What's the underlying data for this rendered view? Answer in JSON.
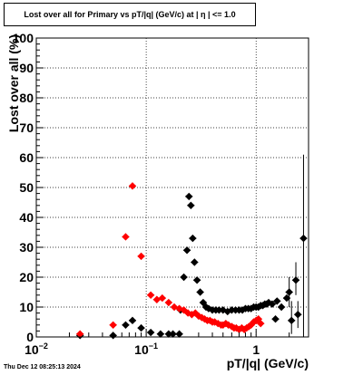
{
  "title": "Lost over all for Primary vs pT/|q| (GeV/c) at |  η  | <= 1.0",
  "footer": "Thu Dec 12 08:25:13 2024",
  "chart_data": {
    "type": "scatter",
    "xlabel": "pT/|q| (GeV/c)",
    "ylabel": "Lost over all (%)",
    "xscale": "log",
    "xlim": [
      0.01,
      3.0
    ],
    "ylim": [
      0,
      100
    ],
    "grid": true,
    "legend": "none",
    "y_ticks": [
      0,
      10,
      20,
      30,
      40,
      50,
      60,
      70,
      80,
      90,
      100
    ],
    "x_ticks": [
      {
        "value": 0.01,
        "base": "10",
        "exp": "−2"
      },
      {
        "value": 0.1,
        "base": "10",
        "exp": "−1"
      },
      {
        "value": 1,
        "base": "1",
        "exp": ""
      }
    ],
    "series": [
      {
        "color": "#000000",
        "points": [
          [
            0.025,
            0.5
          ],
          [
            0.05,
            0.5
          ],
          [
            0.065,
            4.0
          ],
          [
            0.075,
            5.5
          ],
          [
            0.09,
            3.0
          ],
          [
            0.11,
            1.5
          ],
          [
            0.135,
            1.0
          ],
          [
            0.16,
            1.0
          ],
          [
            0.175,
            1.0
          ],
          [
            0.2,
            1.0
          ],
          [
            0.205,
            9.0
          ],
          [
            0.22,
            20.0
          ],
          [
            0.235,
            29.0
          ],
          [
            0.245,
            47.0
          ],
          [
            0.255,
            44.0
          ],
          [
            0.265,
            33.0
          ],
          [
            0.275,
            25.0
          ],
          [
            0.29,
            19.0
          ],
          [
            0.31,
            15.0
          ],
          [
            0.33,
            11.5
          ],
          [
            0.35,
            10.0
          ],
          [
            0.37,
            9.5
          ],
          [
            0.4,
            9.0
          ],
          [
            0.43,
            9.0
          ],
          [
            0.46,
            9.0
          ],
          [
            0.5,
            9.0
          ],
          [
            0.55,
            8.5
          ],
          [
            0.6,
            9.0
          ],
          [
            0.65,
            9.0
          ],
          [
            0.7,
            9.0
          ],
          [
            0.75,
            9.0
          ],
          [
            0.8,
            9.5
          ],
          [
            0.85,
            9.5
          ],
          [
            0.9,
            9.5
          ],
          [
            0.95,
            10.0
          ],
          [
            1.0,
            10.0
          ],
          [
            1.05,
            10.0
          ],
          [
            1.1,
            10.5
          ],
          [
            1.15,
            10.5
          ],
          [
            1.2,
            11.0
          ],
          [
            1.25,
            11.0
          ],
          [
            1.3,
            11.5
          ],
          [
            1.4,
            11.0
          ],
          [
            1.5,
            6.0
          ],
          [
            1.55,
            12.0
          ],
          [
            1.7,
            10.0
          ],
          [
            1.9,
            13.0
          ],
          [
            2.0,
            15.0
          ],
          [
            2.1,
            5.5
          ],
          [
            2.3,
            19.0
          ],
          [
            2.4,
            7.5
          ],
          [
            2.7,
            33.0
          ]
        ],
        "error_bars": [
          [
            2.0,
            10,
            20
          ],
          [
            2.1,
            1,
            12
          ],
          [
            2.3,
            14,
            25
          ],
          [
            2.4,
            3,
            12
          ],
          [
            2.7,
            0,
            61
          ]
        ]
      },
      {
        "color": "#ff0000",
        "points": [
          [
            0.025,
            1.0
          ],
          [
            0.05,
            4.0
          ],
          [
            0.065,
            33.5
          ],
          [
            0.075,
            50.5
          ],
          [
            0.09,
            27.0
          ],
          [
            0.11,
            14.0
          ],
          [
            0.125,
            12.5
          ],
          [
            0.14,
            13.0
          ],
          [
            0.16,
            11.5
          ],
          [
            0.18,
            10.0
          ],
          [
            0.2,
            9.5
          ],
          [
            0.22,
            9.0
          ],
          [
            0.24,
            8.0
          ],
          [
            0.26,
            7.5
          ],
          [
            0.28,
            8.0
          ],
          [
            0.3,
            7.0
          ],
          [
            0.32,
            6.5
          ],
          [
            0.34,
            6.0
          ],
          [
            0.36,
            5.5
          ],
          [
            0.38,
            5.5
          ],
          [
            0.4,
            5.0
          ],
          [
            0.42,
            5.0
          ],
          [
            0.45,
            4.5
          ],
          [
            0.48,
            4.0
          ],
          [
            0.5,
            4.0
          ],
          [
            0.53,
            4.5
          ],
          [
            0.56,
            4.0
          ],
          [
            0.6,
            3.5
          ],
          [
            0.63,
            3.0
          ],
          [
            0.66,
            3.0
          ],
          [
            0.7,
            2.5
          ],
          [
            0.74,
            3.0
          ],
          [
            0.78,
            2.5
          ],
          [
            0.82,
            3.0
          ],
          [
            0.86,
            3.5
          ],
          [
            0.9,
            4.0
          ],
          [
            0.95,
            5.0
          ],
          [
            1.0,
            5.5
          ],
          [
            1.05,
            6.0
          ],
          [
            1.1,
            4.5
          ]
        ]
      }
    ]
  }
}
